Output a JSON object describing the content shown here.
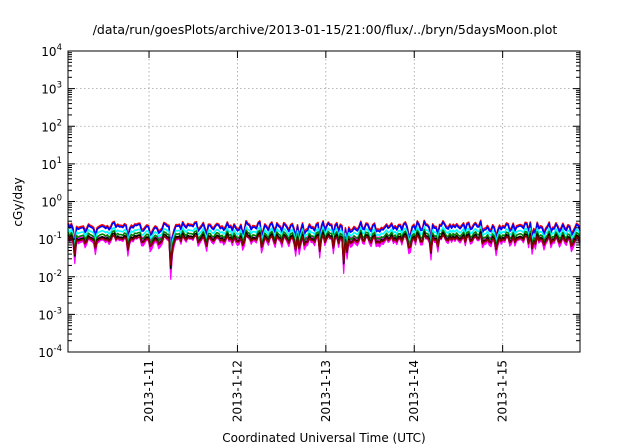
{
  "chart_data": {
    "type": "line",
    "title": "/data/run/goesPlots/archive/2013-01-15/21:00/flux/../bryn/5daysMoon.plot",
    "xlabel": "Coordinated Universal Time (UTC)",
    "ylabel": "cGy/day",
    "yscale": "log",
    "ylim": [
      0.0001,
      10000
    ],
    "xlim": [
      "2013-01-10T02:00",
      "2013-01-15T21:00"
    ],
    "grid": true,
    "legend": "none",
    "y_ticks": [
      {
        "value": 0.0001,
        "base": "10",
        "exp": "-4"
      },
      {
        "value": 0.001,
        "base": "10",
        "exp": "-3"
      },
      {
        "value": 0.01,
        "base": "10",
        "exp": "-2"
      },
      {
        "value": 0.1,
        "base": "10",
        "exp": "-1"
      },
      {
        "value": 1,
        "base": "10",
        "exp": "0"
      },
      {
        "value": 10,
        "base": "10",
        "exp": "1"
      },
      {
        "value": 100,
        "base": "10",
        "exp": "2"
      },
      {
        "value": 1000,
        "base": "10",
        "exp": "3"
      },
      {
        "value": 10000,
        "base": "10",
        "exp": "4"
      }
    ],
    "x_ticks": [
      {
        "value": "2013-01-11T00:00",
        "label": "2013-1-11"
      },
      {
        "value": "2013-01-12T00:00",
        "label": "2013-1-12"
      },
      {
        "value": "2013-01-13T00:00",
        "label": "2013-1-13"
      },
      {
        "value": "2013-01-14T00:00",
        "label": "2013-1-14"
      },
      {
        "value": "2013-01-15T00:00",
        "label": "2013-1-15"
      }
    ],
    "series": [
      {
        "color": "#ff00ff",
        "level": 0.09,
        "fill_min": true
      },
      {
        "color": "#ff0000",
        "level": 0.23
      },
      {
        "color": "#0000ff",
        "level": 0.21
      },
      {
        "color": "#00ffff",
        "level": 0.16
      },
      {
        "color": "#008000",
        "level": 0.13
      },
      {
        "color": "#000000",
        "level": 0.11
      },
      {
        "color": "#8b0000",
        "level": 0.1
      }
    ]
  }
}
